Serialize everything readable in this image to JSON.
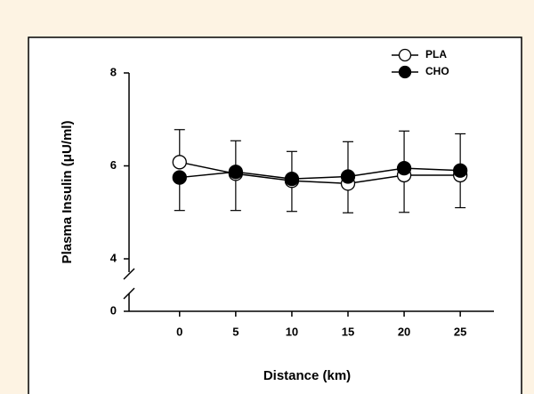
{
  "chart_data": {
    "type": "line",
    "x_label": "Distance (km)",
    "y_label": "Plasma Insulin (μU/ml)",
    "x": [
      0,
      5,
      10,
      15,
      20,
      25
    ],
    "xlim": [
      -4.5,
      28
    ],
    "xticks": [
      0,
      5,
      10,
      15,
      20,
      25
    ],
    "ylim": [
      0,
      8
    ],
    "yticks": [
      0,
      4,
      6,
      8
    ],
    "y_break": [
      0,
      4
    ],
    "legend": "upper right",
    "series": [
      {
        "name": "PLA",
        "marker": "open",
        "color": "#000000",
        "error_direction": "up",
        "values": [
          6.08,
          5.83,
          5.68,
          5.62,
          5.8,
          5.8
        ],
        "errors": [
          0.7,
          0.71,
          0.63,
          0.9,
          0.95,
          0.89
        ]
      },
      {
        "name": "CHO",
        "marker": "filled",
        "color": "#000000",
        "error_direction": "down",
        "values": [
          5.75,
          5.87,
          5.72,
          5.77,
          5.95,
          5.9
        ],
        "errors": [
          0.71,
          0.83,
          0.7,
          0.78,
          0.95,
          0.8
        ]
      }
    ]
  }
}
